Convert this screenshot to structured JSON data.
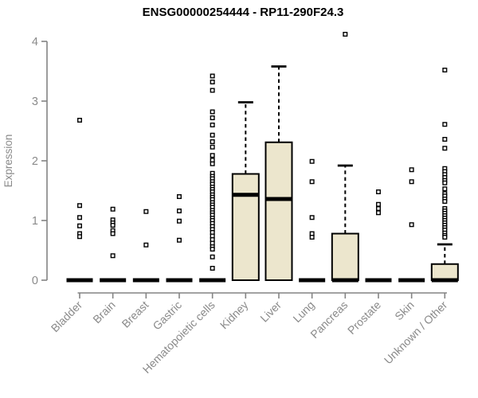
{
  "page": {
    "background": "#ffffff"
  },
  "chart_data": {
    "type": "boxplot",
    "title": "ENSG00000254444 - RP11-290F24.3",
    "ylabel": "Expression",
    "xlabel": "",
    "ylim": [
      0,
      4
    ],
    "yticks": [
      0,
      1,
      2,
      3,
      4
    ],
    "grid": false,
    "legend": "none",
    "colors": {
      "box_fill": "#ece6cd",
      "box_stroke": "#000000",
      "median": "#000000",
      "whisker": "#000000",
      "outlier_fill": "#ffffff",
      "outlier_stroke": "#000000",
      "axis_line": "#848484",
      "axis_text": "#8a8a8a",
      "title_text": "#000000"
    },
    "categories": [
      "Bladder",
      "Brain",
      "Breast",
      "Gastric",
      "Hematopoietic cells",
      "Kidney",
      "Liver",
      "Lung",
      "Pancreas",
      "Prostate",
      "Skin",
      "Unknown / Other"
    ],
    "boxes": [
      {
        "name": "Bladder",
        "whisker_low": 0,
        "q1": 0,
        "median": 0,
        "q3": 0,
        "whisker_high": 0,
        "outliers": [
          2.68,
          1.25,
          1.05,
          0.91,
          0.78,
          0.73
        ]
      },
      {
        "name": "Brain",
        "whisker_low": 0,
        "q1": 0,
        "median": 0,
        "q3": 0,
        "whisker_high": 0,
        "outliers": [
          1.19,
          1.01,
          0.96,
          0.92,
          0.83,
          0.78,
          0.41
        ]
      },
      {
        "name": "Breast",
        "whisker_low": 0,
        "q1": 0,
        "median": 0,
        "q3": 0,
        "whisker_high": 0,
        "outliers": [
          1.15,
          0.59
        ]
      },
      {
        "name": "Gastric",
        "whisker_low": 0,
        "q1": 0,
        "median": 0,
        "q3": 0,
        "whisker_high": 0,
        "outliers": [
          1.4,
          1.16,
          0.99,
          0.67
        ]
      },
      {
        "name": "Hematopoietic cells",
        "whisker_low": 0,
        "q1": 0,
        "median": 0,
        "q3": 0,
        "whisker_high": 0,
        "outliers": [
          3.42,
          3.32,
          3.18,
          2.82,
          2.72,
          2.6,
          2.43,
          2.32,
          2.23,
          2.09,
          2.01,
          1.95,
          1.79,
          1.74,
          1.7,
          1.65,
          1.61,
          1.56,
          1.52,
          1.48,
          1.43,
          1.39,
          1.35,
          1.3,
          1.26,
          1.22,
          1.17,
          1.13,
          1.09,
          1.04,
          1.0,
          0.95,
          0.9,
          0.85,
          0.8,
          0.74,
          0.68,
          0.62,
          0.56,
          0.52,
          0.39,
          0.2
        ]
      },
      {
        "name": "Kidney",
        "whisker_low": 0,
        "q1": 0,
        "median": 1.43,
        "q3": 1.78,
        "whisker_high": 2.98,
        "outliers": []
      },
      {
        "name": "Liver",
        "whisker_low": 0,
        "q1": 0,
        "median": 1.36,
        "q3": 2.31,
        "whisker_high": 3.58,
        "outliers": []
      },
      {
        "name": "Lung",
        "whisker_low": 0,
        "q1": 0,
        "median": 0,
        "q3": 0,
        "whisker_high": 0,
        "outliers": [
          1.99,
          1.65,
          1.05,
          0.78,
          0.72
        ]
      },
      {
        "name": "Pancreas",
        "whisker_low": 0,
        "q1": 0,
        "median": 0,
        "q3": 0.78,
        "whisker_high": 1.92,
        "outliers": [
          4.12
        ]
      },
      {
        "name": "Prostate",
        "whisker_low": 0,
        "q1": 0,
        "median": 0,
        "q3": 0,
        "whisker_high": 0,
        "outliers": [
          1.48,
          1.27,
          1.2,
          1.13
        ]
      },
      {
        "name": "Skin",
        "whisker_low": 0,
        "q1": 0,
        "median": 0,
        "q3": 0,
        "whisker_high": 0,
        "outliers": [
          1.85,
          1.65,
          0.93
        ]
      },
      {
        "name": "Unknown / Other",
        "whisker_low": 0,
        "q1": 0,
        "median": 0,
        "q3": 0.27,
        "whisker_high": 0.6,
        "outliers": [
          3.52,
          2.61,
          2.36,
          2.21,
          1.87,
          1.82,
          1.77,
          1.72,
          1.67,
          1.63,
          1.53,
          1.45,
          1.41,
          1.36,
          1.32,
          1.2,
          1.16,
          1.12,
          1.08,
          1.04,
          1.0,
          0.96,
          0.92,
          0.88,
          0.84,
          0.79,
          0.75,
          0.72
        ]
      }
    ]
  }
}
